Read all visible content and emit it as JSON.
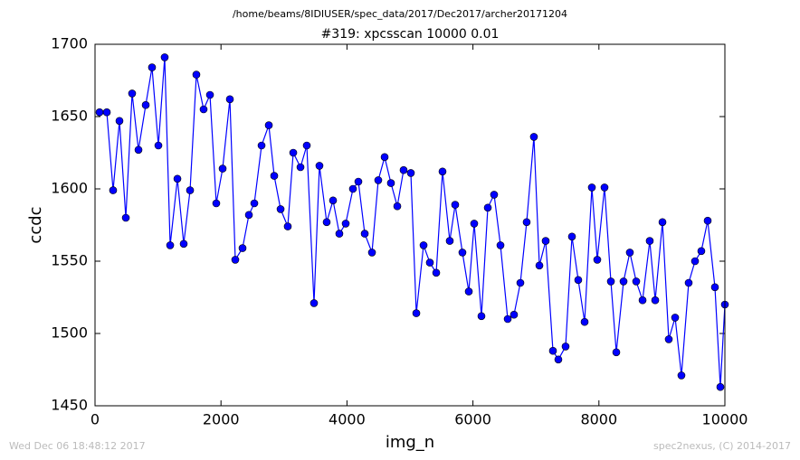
{
  "chart_data": {
    "type": "line",
    "suptitle": "/home/beams/8IDIUSER/spec_data/2017/Dec2017/archer20171204",
    "title": "#319: xpcsscan 10000 0.01",
    "xlabel": "img_n",
    "ylabel": "ccdc",
    "footer_left": "Wed Dec 06 18:48:12 2017",
    "footer_right": "spec2nexus, (C) 2014-2017",
    "color": "#0000ff",
    "x": [
      72,
      187,
      287,
      388,
      489,
      589,
      690,
      805,
      905,
      1006,
      1106,
      1193,
      1308,
      1408,
      1509,
      1609,
      1724,
      1825,
      1925,
      2026,
      2141,
      2227,
      2342,
      2443,
      2529,
      2644,
      2759,
      2845,
      2946,
      3060,
      3147,
      3262,
      3362,
      3477,
      3563,
      3678,
      3779,
      3879,
      3980,
      4095,
      4181,
      4282,
      4397,
      4497,
      4598,
      4698,
      4799,
      4899,
      5014,
      5101,
      5216,
      5316,
      5417,
      5517,
      5632,
      5718,
      5833,
      5934,
      6020,
      6135,
      6236,
      6336,
      6437,
      6552,
      6652,
      6753,
      6853,
      6968,
      7055,
      7155,
      7270,
      7356,
      7471,
      7572,
      7672,
      7773,
      7888,
      7974,
      8089,
      8190,
      8276,
      8391,
      8491,
      8592,
      8693,
      8807,
      8894,
      9009,
      9109,
      9210,
      9310,
      9425,
      9526,
      9626,
      9727,
      9842,
      9928,
      10000
    ],
    "values": [
      1653,
      1653,
      1599,
      1647,
      1580,
      1666,
      1627,
      1658,
      1684,
      1630,
      1691,
      1561,
      1607,
      1562,
      1599,
      1679,
      1655,
      1665,
      1590,
      1614,
      1662,
      1551,
      1559,
      1582,
      1590,
      1630,
      1644,
      1609,
      1586,
      1574,
      1625,
      1615,
      1630,
      1521,
      1616,
      1577,
      1592,
      1569,
      1576,
      1600,
      1605,
      1569,
      1556,
      1606,
      1622,
      1604,
      1588,
      1613,
      1611,
      1514,
      1561,
      1549,
      1542,
      1612,
      1564,
      1589,
      1556,
      1529,
      1576,
      1512,
      1587,
      1596,
      1561,
      1510,
      1513,
      1535,
      1577,
      1636,
      1547,
      1564,
      1488,
      1482,
      1491,
      1567,
      1537,
      1508,
      1601,
      1551,
      1601,
      1536,
      1487,
      1536,
      1556,
      1536,
      1523,
      1564,
      1523,
      1577,
      1496,
      1511,
      1471,
      1535,
      1550,
      1557,
      1578,
      1532,
      1463,
      1520
    ],
    "xlim": [
      0,
      10000
    ],
    "xticks": [
      0,
      2000,
      4000,
      6000,
      8000,
      10000
    ],
    "ylim": [
      1450,
      1700
    ],
    "yticks": [
      1450,
      1500,
      1550,
      1600,
      1650,
      1700
    ],
    "grid": false
  }
}
